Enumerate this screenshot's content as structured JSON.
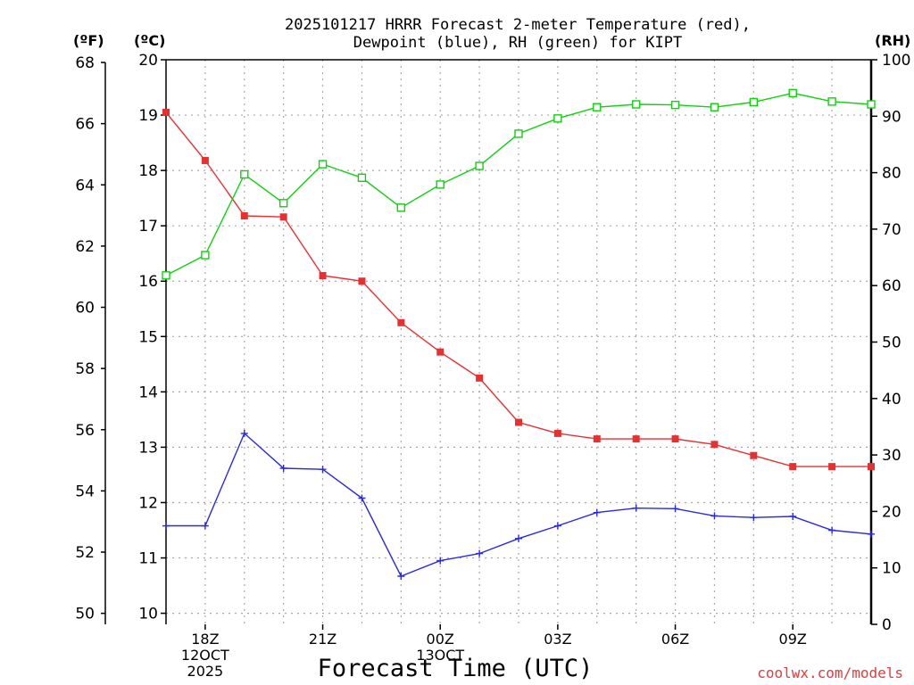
{
  "header": {
    "title_line1": "2025101217 HRRR Forecast 2-meter Temperature (red),",
    "title_line2": "Dewpoint (blue), RH (green) for KIPT"
  },
  "units": {
    "fahrenheit": "(ºF)",
    "celsius": "(ºC)",
    "rh": "(RH)"
  },
  "footer": {
    "xlabel": "Forecast Time (UTC)",
    "credit": "coolwx.com/models"
  },
  "chart_data": {
    "type": "line",
    "title": "2025101217 HRRR Forecast 2-meter Temperature (red), Dewpoint (blue), RH (green) for KIPT",
    "xlabel": "Forecast Time (UTC)",
    "x": [
      17,
      18,
      19,
      20,
      21,
      22,
      23,
      24,
      25,
      26,
      27,
      28,
      29,
      30,
      31,
      32,
      33,
      34,
      35
    ],
    "xlim": [
      17,
      35
    ],
    "x_ticks": [
      {
        "x": 18,
        "lines": [
          "18Z",
          "12OCT",
          "2025"
        ]
      },
      {
        "x": 21,
        "lines": [
          "21Z"
        ]
      },
      {
        "x": 24,
        "lines": [
          "00Z",
          "13OCT"
        ]
      },
      {
        "x": 27,
        "lines": [
          "03Z"
        ]
      },
      {
        "x": 30,
        "lines": [
          "06Z"
        ]
      },
      {
        "x": 33,
        "lines": [
          "09Z"
        ]
      }
    ],
    "y_left_celsius": {
      "label": "(ºC)",
      "lim": [
        9.8,
        20
      ],
      "ticks": [
        10,
        11,
        12,
        13,
        14,
        15,
        16,
        17,
        18,
        19,
        20
      ]
    },
    "y_left_fahrenheit": {
      "label": "(ºF)",
      "lim": [
        49.64,
        68
      ],
      "ticks": [
        50,
        52,
        54,
        56,
        58,
        60,
        62,
        64,
        66,
        68
      ]
    },
    "y_right_rh": {
      "label": "(RH)",
      "lim": [
        0,
        100
      ],
      "ticks": [
        0,
        10,
        20,
        30,
        40,
        50,
        60,
        70,
        80,
        90,
        100
      ]
    },
    "grid": true,
    "series": [
      {
        "name": "Temperature",
        "axis": "celsius",
        "color": "#e83030",
        "marker": "filled-square",
        "values": [
          19.05,
          18.18,
          17.18,
          17.16,
          16.1,
          16.0,
          15.25,
          14.72,
          14.25,
          13.45,
          13.25,
          13.15,
          13.15,
          13.15,
          13.05,
          12.85,
          12.65,
          12.65,
          12.65
        ]
      },
      {
        "name": "Dewpoint",
        "axis": "celsius",
        "color": "#2828e8",
        "marker": "plus",
        "values": [
          11.58,
          11.58,
          13.25,
          12.62,
          12.6,
          12.08,
          10.67,
          10.95,
          11.08,
          11.35,
          11.58,
          11.82,
          11.9,
          11.89,
          11.76,
          11.73,
          11.75,
          11.5,
          11.43
        ]
      },
      {
        "name": "RH",
        "axis": "rh",
        "color": "#10d010",
        "marker": "open-square",
        "values": [
          61.8,
          65.4,
          79.7,
          74.6,
          81.5,
          79.1,
          73.8,
          77.9,
          81.2,
          86.9,
          89.6,
          91.6,
          92.1,
          92.0,
          91.6,
          92.5,
          94.1,
          92.6,
          92.1
        ]
      }
    ]
  }
}
